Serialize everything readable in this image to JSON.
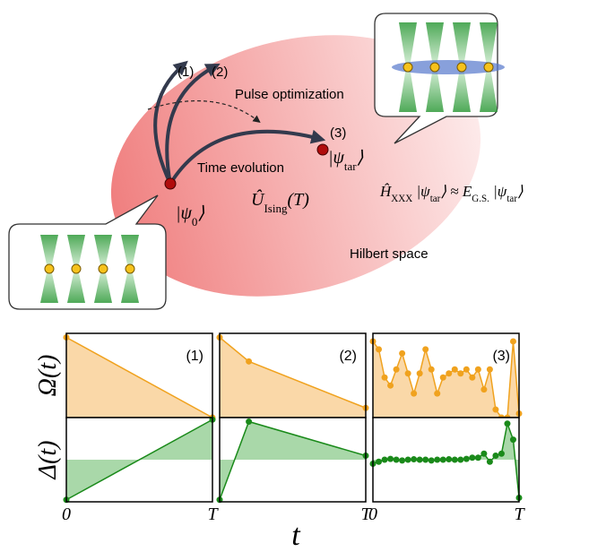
{
  "diagram": {
    "label_1": "(1)",
    "label_2": "(2)",
    "pulse": "Pulse optimization",
    "label_3": "(3)",
    "psi_tar": [
      "|ψ",
      "tar",
      "⟩"
    ],
    "time_evolution": "Time evolution",
    "psi_0": [
      "|ψ",
      "0",
      "⟩"
    ],
    "unitary": [
      "Û",
      "Ising",
      "(T)"
    ],
    "equation": [
      "Ĥ",
      "XXX",
      " |ψ",
      "tar",
      "⟩ ≈ E",
      "G.S.",
      " |ψ",
      "tar",
      "⟩"
    ],
    "space": "Hilbert space"
  },
  "xlabel": "t",
  "chart_data": [
    {
      "type": "line",
      "label": "(1)",
      "ylabel": "Ω(t)",
      "color": "#f0a21e",
      "fill": "#fad8a8",
      "x": [
        0,
        1
      ],
      "values": [
        1,
        0
      ],
      "xlim": [
        0,
        1
      ],
      "ylim": [
        0,
        1.05
      ]
    },
    {
      "type": "line",
      "label": "(2)",
      "color": "#f0a21e",
      "fill": "#fad8a8",
      "x": [
        0,
        0.2,
        1
      ],
      "values": [
        1,
        0.7,
        0.12
      ],
      "xlim": [
        0,
        1
      ],
      "ylim": [
        0,
        1.05
      ]
    },
    {
      "type": "line",
      "label": "(3)",
      "color": "#f0a21e",
      "fill": "#fad8a8",
      "x": [
        0,
        0.04,
        0.08,
        0.12,
        0.16,
        0.2,
        0.24,
        0.28,
        0.32,
        0.36,
        0.4,
        0.44,
        0.48,
        0.52,
        0.56,
        0.6,
        0.64,
        0.68,
        0.72,
        0.76,
        0.8,
        0.84,
        0.88,
        0.92,
        0.96,
        1
      ],
      "values": [
        0.95,
        0.85,
        0.5,
        0.4,
        0.6,
        0.8,
        0.55,
        0.3,
        0.55,
        0.85,
        0.6,
        0.3,
        0.5,
        0.55,
        0.6,
        0.55,
        0.6,
        0.5,
        0.6,
        0.35,
        0.6,
        0.1,
        0,
        0,
        0.95,
        0.05
      ],
      "xlim": [
        0,
        1
      ],
      "ylim": [
        0,
        1.05
      ]
    },
    {
      "type": "line",
      "ylabel": "Δ(t)",
      "color": "#1a8a1a",
      "fill": "#a9d8a9",
      "x": [
        0,
        1
      ],
      "values": [
        -1,
        1
      ],
      "xlim": [
        0,
        1
      ],
      "ylim": [
        -1.05,
        1.05
      ],
      "xticks": [
        {
          "value": 0,
          "label": "0"
        },
        {
          "value": 1,
          "label": "T"
        }
      ]
    },
    {
      "type": "line",
      "color": "#1a8a1a",
      "fill": "#a9d8a9",
      "x": [
        0,
        0.2,
        1
      ],
      "values": [
        -1,
        0.95,
        0.1
      ],
      "xlim": [
        0,
        1
      ],
      "ylim": [
        -1.05,
        1.05
      ],
      "xticks": [
        {
          "value": 1,
          "label": "T"
        }
      ]
    },
    {
      "type": "line",
      "color": "#1a8a1a",
      "fill": "#a9d8a9",
      "x": [
        0,
        0.04,
        0.08,
        0.12,
        0.16,
        0.2,
        0.24,
        0.28,
        0.32,
        0.36,
        0.4,
        0.44,
        0.48,
        0.52,
        0.56,
        0.6,
        0.64,
        0.68,
        0.72,
        0.76,
        0.8,
        0.84,
        0.88,
        0.92,
        0.96,
        1
      ],
      "values": [
        -0.1,
        -0.05,
        0,
        0.02,
        0,
        -0.02,
        0,
        0.01,
        0,
        0,
        -0.02,
        0,
        0,
        0.01,
        0,
        0,
        0.02,
        0.05,
        0.05,
        0.15,
        -0.05,
        0.1,
        0.15,
        0.9,
        0.5,
        -0.95
      ],
      "xlim": [
        0,
        1
      ],
      "ylim": [
        -1.05,
        1.05
      ],
      "xticks": [
        {
          "value": 0,
          "label": "0"
        },
        {
          "value": 1,
          "label": "T"
        }
      ]
    }
  ]
}
